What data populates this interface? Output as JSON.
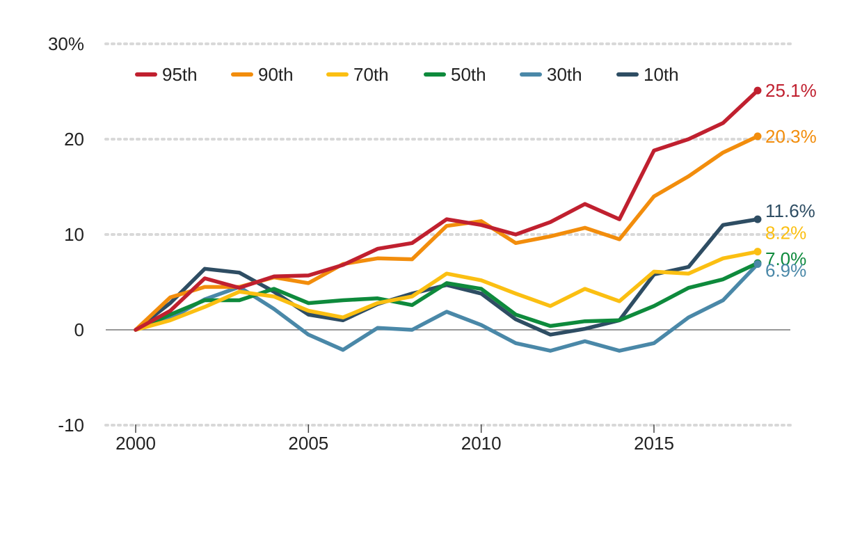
{
  "chart_data": {
    "type": "line",
    "x": [
      2000,
      2001,
      2002,
      2003,
      2004,
      2005,
      2006,
      2007,
      2008,
      2009,
      2010,
      2011,
      2012,
      2013,
      2014,
      2015,
      2016,
      2017,
      2018
    ],
    "xticks": [
      2000,
      2005,
      2010,
      2015
    ],
    "xtick_labels": [
      "2000",
      "2005",
      "2010",
      "2015"
    ],
    "yticks": [
      30,
      20,
      10,
      0,
      -10
    ],
    "ytick_labels": [
      "30%",
      "20",
      "10",
      "0",
      "-10"
    ],
    "ylim": [
      -10,
      30
    ],
    "xlim": [
      1999.1,
      2018.9
    ],
    "grid": "horizontal dotted",
    "legend_position": "top-left",
    "title": "",
    "xlabel": "",
    "ylabel": "",
    "series": [
      {
        "name": "95th",
        "color": "#c0202f",
        "end_label": "25.1%",
        "values": [
          0,
          2.0,
          5.4,
          4.4,
          5.6,
          5.7,
          6.8,
          8.5,
          9.1,
          11.6,
          11.0,
          10.0,
          11.3,
          13.2,
          11.6,
          18.8,
          20.0,
          21.7,
          25.1
        ]
      },
      {
        "name": "90th",
        "color": "#f28d0c",
        "end_label": "20.3%",
        "values": [
          0,
          3.4,
          4.5,
          4.5,
          5.5,
          4.9,
          6.9,
          7.5,
          7.4,
          10.9,
          11.4,
          9.1,
          9.8,
          10.7,
          9.5,
          14.0,
          16.1,
          18.6,
          20.3
        ]
      },
      {
        "name": "70th",
        "color": "#fbbf12",
        "end_label": "8.2%",
        "values": [
          0,
          1.0,
          2.4,
          4.0,
          3.5,
          2.0,
          1.3,
          2.8,
          3.5,
          5.9,
          5.2,
          3.8,
          2.5,
          4.3,
          3.0,
          6.1,
          5.9,
          7.5,
          8.2
        ]
      },
      {
        "name": "50th",
        "color": "#0e8a3c",
        "end_label": "7.0%",
        "values": [
          0,
          1.6,
          3.1,
          3.1,
          4.3,
          2.8,
          3.1,
          3.3,
          2.6,
          4.9,
          4.3,
          1.6,
          0.4,
          0.9,
          1.0,
          2.5,
          4.4,
          5.3,
          7.0
        ]
      },
      {
        "name": "30th",
        "color": "#4a88a8",
        "end_label": "6.9%",
        "values": [
          0,
          1.2,
          3.2,
          4.5,
          2.2,
          -0.5,
          -2.1,
          0.2,
          0.0,
          1.9,
          0.5,
          -1.4,
          -2.2,
          -1.2,
          -2.2,
          -1.4,
          1.3,
          3.1,
          6.9
        ]
      },
      {
        "name": "10th",
        "color": "#2e4d63",
        "end_label": "11.6%",
        "values": [
          0,
          2.8,
          6.4,
          6.0,
          4.0,
          1.6,
          1.0,
          2.7,
          3.8,
          4.7,
          3.8,
          1.1,
          -0.5,
          0.1,
          1.0,
          5.8,
          6.6,
          11.0,
          11.6
        ]
      }
    ]
  }
}
